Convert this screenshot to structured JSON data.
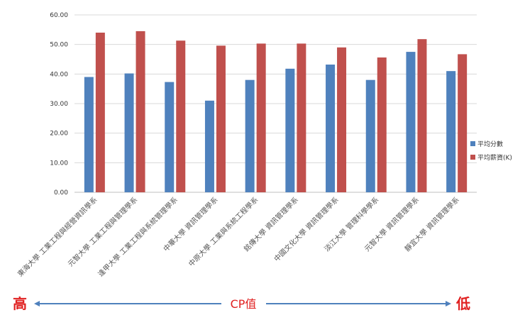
{
  "chart_data": {
    "type": "bar",
    "categories": [
      "東海大學 工業工程與經營資訊學系",
      "元智大學 工業工程與管理學系",
      "逢甲大學 工業工程與系統管理學系",
      "中華大學 資訊管理學系",
      "中原大學 工業與系統工程學系",
      "銘傳大學 資訊管理學系",
      "中國文化大學 資訊管理學系",
      "淡江大學 管理科學學系",
      "元智大學 資訊管理學系",
      "靜宜大學 資訊管理學系"
    ],
    "series": [
      {
        "name": "平均分數",
        "values": [
          39.0,
          40.2,
          37.3,
          31.0,
          38.0,
          41.8,
          43.2,
          38.0,
          47.5,
          41.0
        ]
      },
      {
        "name": "平均薪資(K)",
        "values": [
          54.0,
          54.5,
          51.3,
          49.6,
          50.3,
          50.3,
          49.0,
          45.6,
          51.8,
          46.7
        ]
      }
    ],
    "y_ticks": [
      "0.00",
      "10.00",
      "20.00",
      "30.00",
      "40.00",
      "50.00",
      "60.00"
    ],
    "ylim": [
      0,
      60
    ],
    "grid": true,
    "legend_position": "right",
    "colors": {
      "series1": "#4f81bd",
      "series2": "#c0504d",
      "grid": "#d9d9d9",
      "arrow": "#4f81bd",
      "annotation": "#e02020"
    }
  },
  "annotation": {
    "left": "高",
    "center": "CP值",
    "right": "低"
  }
}
